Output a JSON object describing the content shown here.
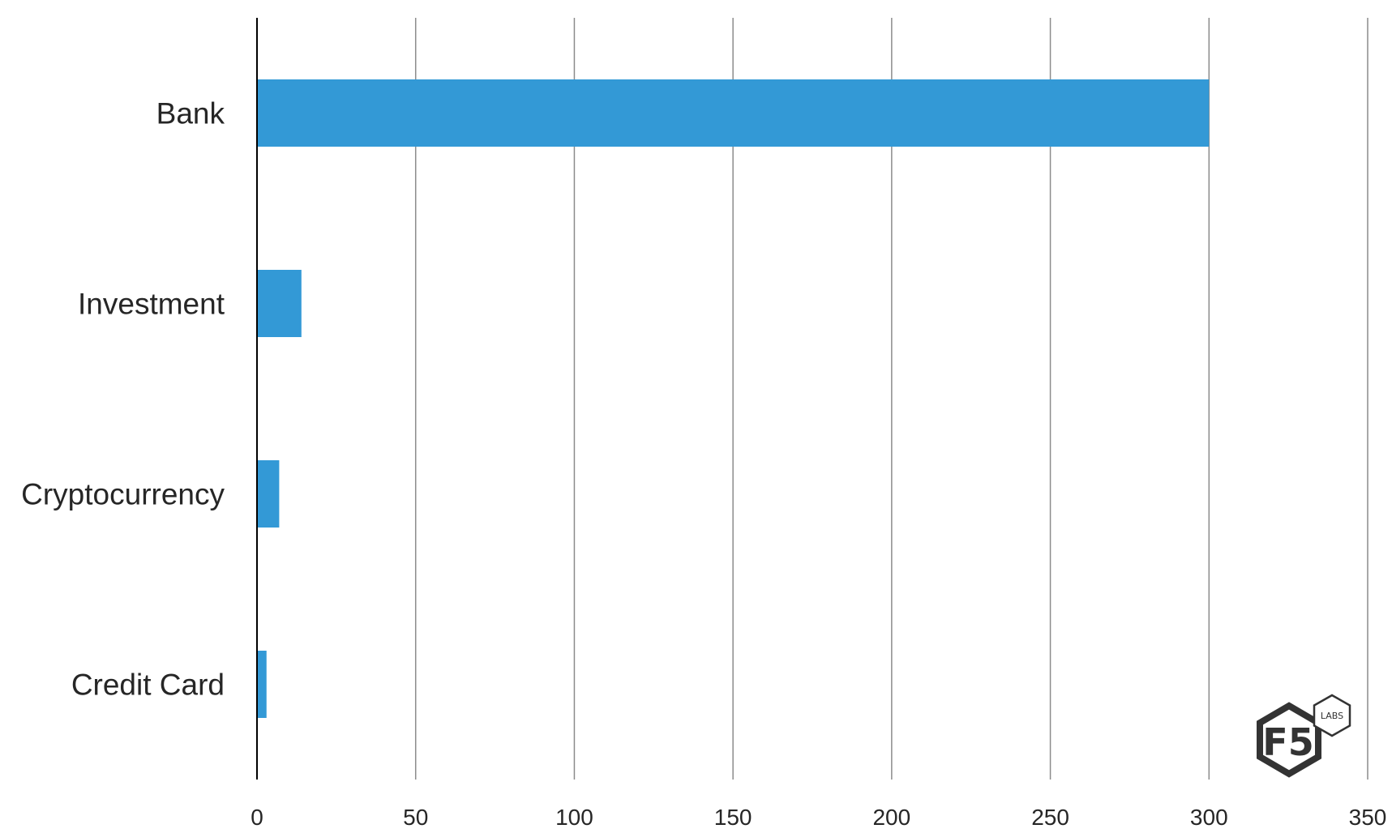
{
  "chart_data": {
    "type": "bar",
    "orientation": "horizontal",
    "categories": [
      "Bank",
      "Investment",
      "Cryptocurrency",
      "Credit Card"
    ],
    "values": [
      300,
      14,
      7,
      3
    ],
    "xlim": [
      0,
      350
    ],
    "xticks": [
      0,
      50,
      100,
      150,
      200,
      250,
      300,
      350
    ],
    "title": "",
    "xlabel": "",
    "ylabel": "",
    "grid": "vertical",
    "legend": "none",
    "bar_color": "#3399D6"
  },
  "logo": {
    "main": "F5",
    "badge": "LABS"
  }
}
